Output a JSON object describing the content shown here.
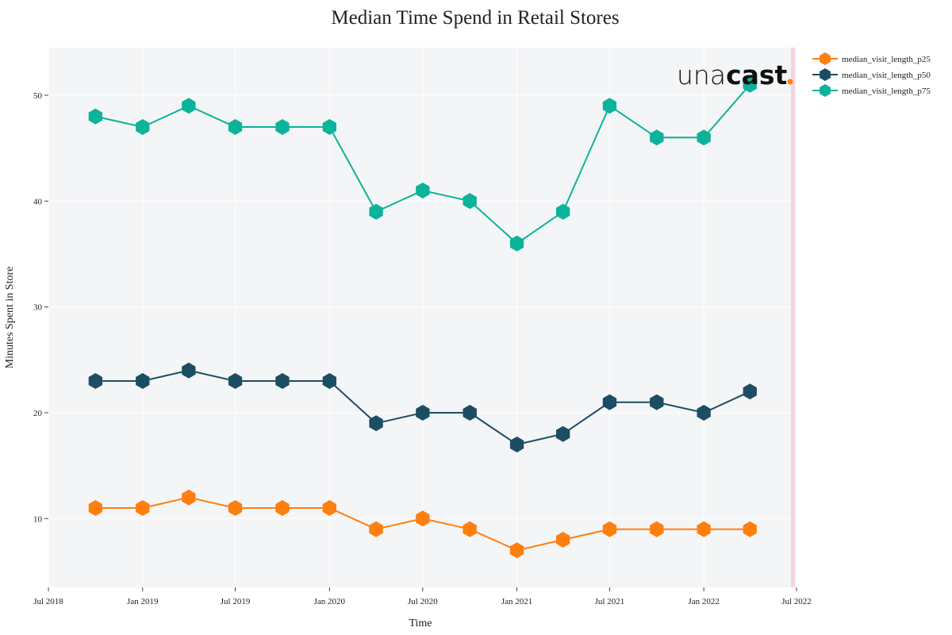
{
  "chart_data": {
    "type": "line",
    "title": "Median Time Spend in Retail Stores",
    "xlabel": "Time",
    "ylabel": "Minutes Spent in Store",
    "x": [
      "2018-10-01",
      "2019-01-01",
      "2019-04-01",
      "2019-07-01",
      "2019-10-01",
      "2020-01-01",
      "2020-04-01",
      "2020-07-01",
      "2020-10-01",
      "2021-01-01",
      "2021-04-01",
      "2021-07-01",
      "2021-10-01",
      "2022-01-01",
      "2022-04-01"
    ],
    "x_ticks": [
      {
        "date": "2018-07-01",
        "label": "Jul 2018"
      },
      {
        "date": "2019-01-01",
        "label": "Jan 2019"
      },
      {
        "date": "2019-07-01",
        "label": "Jul 2019"
      },
      {
        "date": "2020-01-01",
        "label": "Jan 2020"
      },
      {
        "date": "2020-07-01",
        "label": "Jul 2020"
      },
      {
        "date": "2021-01-01",
        "label": "Jan 2021"
      },
      {
        "date": "2021-07-01",
        "label": "Jul 2021"
      },
      {
        "date": "2022-01-01",
        "label": "Jan 2022"
      },
      {
        "date": "2022-07-01",
        "label": "Jul 2022"
      }
    ],
    "xlim": [
      "2018-07-01",
      "2022-07-01"
    ],
    "y_ticks": [
      10,
      20,
      30,
      40,
      50
    ],
    "ylim": [
      3.5,
      54.5
    ],
    "grid": true,
    "legend_position": "top-right",
    "series": [
      {
        "name": "median_visit_length_p25",
        "color": "#ff7f0e",
        "values": [
          11,
          11,
          12,
          11,
          11,
          11,
          9,
          10,
          9,
          7,
          8,
          9,
          9,
          9,
          9
        ]
      },
      {
        "name": "median_visit_length_p50",
        "color": "#1c4e63",
        "values": [
          23,
          23,
          24,
          23,
          23,
          23,
          19,
          20,
          20,
          17,
          18,
          21,
          21,
          20,
          22
        ]
      },
      {
        "name": "median_visit_length_p75",
        "color": "#0bb39a",
        "values": [
          48,
          47,
          49,
          47,
          47,
          47,
          39,
          41,
          40,
          36,
          39,
          49,
          46,
          46,
          51
        ]
      }
    ]
  },
  "logo": {
    "light": "una",
    "bold": "cast",
    "dot_color": "#ff7f0e"
  },
  "colors": {
    "plot_bg": "#f4f5f7",
    "grid": "#ffffff",
    "highlight_band": "#f5d5e0"
  }
}
